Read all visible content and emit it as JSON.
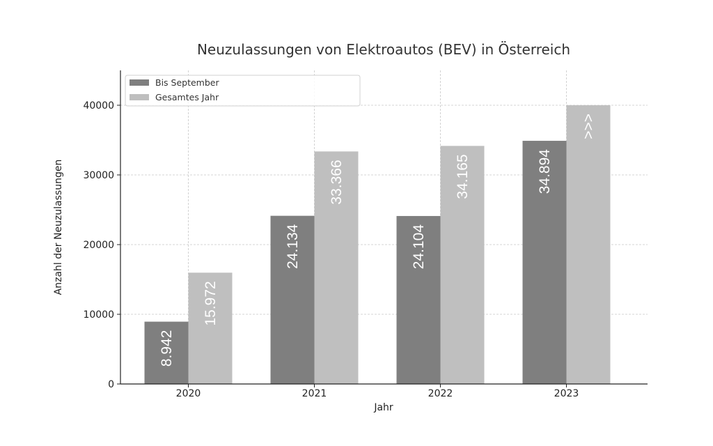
{
  "chart_data": {
    "type": "bar",
    "title": "Neuzulassungen von Elektroautos (BEV) in Österreich",
    "xlabel": "Jahr",
    "ylabel": "Anzahl der Neuzulassungen",
    "categories": [
      "2020",
      "2021",
      "2022",
      "2023"
    ],
    "series": [
      {
        "name": "Bis September",
        "color": "#7f7f7f",
        "values": [
          8942,
          24134,
          24104,
          34894
        ],
        "labels": [
          "8.942",
          "24.134",
          "24.104",
          "34.894"
        ]
      },
      {
        "name": "Gesamtes Jahr",
        "color": "#bfbfbf",
        "values": [
          15972,
          33366,
          34165,
          40000
        ],
        "labels": [
          "15.972",
          "33.366",
          "34.165",
          ">>>"
        ]
      }
    ],
    "ylim": [
      0,
      45000
    ],
    "yticks": [
      0,
      10000,
      20000,
      30000,
      40000
    ],
    "grid": true,
    "legend_position": "upper left"
  }
}
